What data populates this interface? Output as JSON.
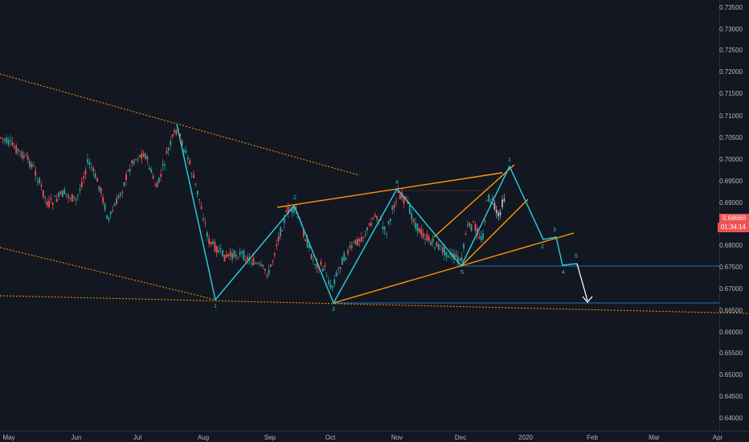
{
  "price_axis": {
    "ticks": [
      "0.73500",
      "0.73000",
      "0.72500",
      "0.72000",
      "0.71500",
      "0.71000",
      "0.70500",
      "0.70000",
      "0.69500",
      "0.69000",
      "0.68500",
      "0.68000",
      "0.67500",
      "0.67000",
      "0.66500",
      "0.66000",
      "0.65500",
      "0.65000",
      "0.64500",
      "0.64000"
    ],
    "current_price": "0.68660",
    "countdown": "01:34:14",
    "current_price_color": "#ef5350",
    "countdown_color": "#ef5350"
  },
  "time_axis": {
    "ticks": [
      "May",
      "Jun",
      "Jul",
      "Aug",
      "Sep",
      "Oct",
      "Nov",
      "Dec",
      "2020",
      "Feb",
      "Mar",
      "Apr"
    ]
  },
  "wave_labels": [
    "1",
    "2",
    "3",
    "4",
    "5",
    "1",
    "2",
    "3",
    "4",
    "5"
  ],
  "colors": {
    "background": "#131722",
    "wave": "#26c6da",
    "trendline": "#ff9800",
    "projection": "#ffffff",
    "level": "#2196f3",
    "candle_up": "#26a69a",
    "candle_down": "#ef5350",
    "candle_live": "#b2b5be"
  }
}
